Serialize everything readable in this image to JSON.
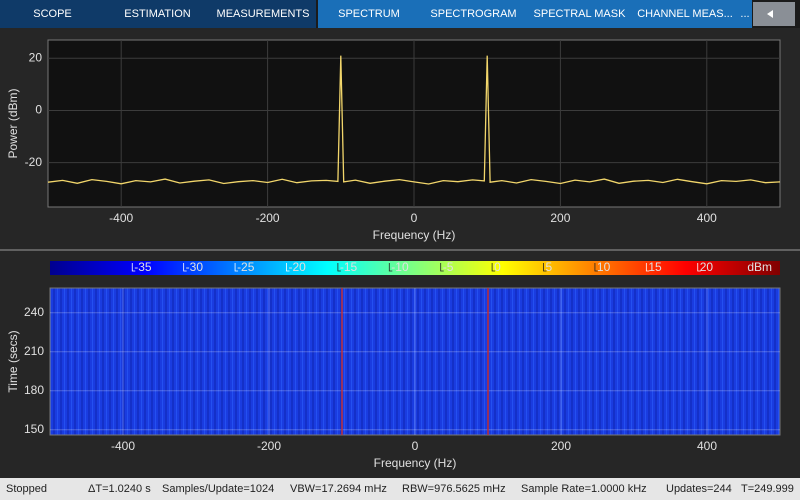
{
  "toolbar": {
    "tabs": [
      "SCOPE",
      "ESTIMATION",
      "MEASUREMENTS",
      "SPECTRUM",
      "SPECTROGRAM",
      "SPECTRAL MASK",
      "CHANNEL MEAS..."
    ],
    "more": "..."
  },
  "chart_data": [
    {
      "type": "line",
      "xlabel": "Frequency (Hz)",
      "ylabel": "Power (dBm)",
      "x": [
        -500,
        -480,
        -460,
        -440,
        -420,
        -400,
        -380,
        -360,
        -340,
        -320,
        -300,
        -280,
        -260,
        -240,
        -220,
        -200,
        -180,
        -160,
        -140,
        -120,
        -104,
        -100,
        -96,
        -80,
        -60,
        -40,
        -20,
        0,
        20,
        40,
        60,
        80,
        96,
        100,
        104,
        120,
        140,
        160,
        180,
        200,
        220,
        240,
        260,
        280,
        300,
        320,
        340,
        360,
        380,
        400,
        420,
        440,
        460,
        480,
        500
      ],
      "series": [
        {
          "color": "#f2d66b",
          "values": [
            -27.5,
            -26.8,
            -27.9,
            -26.5,
            -27.2,
            -28.1,
            -26.9,
            -27.4,
            -26.3,
            -27.8,
            -27.1,
            -26.6,
            -28.0,
            -27.3,
            -26.9,
            -27.6,
            -26.4,
            -27.7,
            -27.0,
            -26.8,
            -27.2,
            21,
            -27.4,
            -26.7,
            -27.9,
            -27.1,
            -26.5,
            -27.4,
            -28.2,
            -26.9,
            -27.3,
            -26.6,
            -27.0,
            21,
            -27.5,
            -26.9,
            -27.8,
            -26.5,
            -27.2,
            -28.0,
            -26.7,
            -27.4,
            -26.3,
            -27.9,
            -27.1,
            -26.8,
            -27.6,
            -26.4,
            -27.3,
            -28.1,
            -26.9,
            -27.2,
            -26.6,
            -27.7,
            -27.4
          ]
        }
      ],
      "xlim": [
        -500,
        500
      ],
      "ylim": [
        -37,
        27
      ],
      "xticks": [
        -400,
        -200,
        0,
        200,
        400
      ],
      "yticks": [
        -20,
        0,
        20
      ],
      "grid": true
    },
    {
      "type": "spectrogram",
      "xlabel": "Frequency (Hz)",
      "ylabel": "Time (secs)",
      "tone_x": [
        -100,
        100
      ],
      "tone_color": "#c0303a",
      "xlim": [
        -500,
        500
      ],
      "ylim": [
        146,
        259
      ],
      "xticks": [
        -400,
        -200,
        0,
        200,
        400
      ],
      "yticks": [
        150,
        180,
        210,
        240
      ],
      "grid": true,
      "colorbar": {
        "lim": [
          -43,
          28
        ],
        "ticks": [
          -35,
          -30,
          -25,
          -20,
          -15,
          -10,
          -5,
          0,
          5,
          10,
          15,
          20
        ],
        "unit": "dBm"
      }
    }
  ],
  "status": {
    "state": "Stopped",
    "items": [
      "ΔT=1.0240 s",
      "Samples/Update=1024",
      "VBW=17.2694 mHz",
      "RBW=976.5625 mHz",
      "Sample Rate=1.0000 kHz",
      "Updates=244",
      "T=249.999"
    ]
  }
}
